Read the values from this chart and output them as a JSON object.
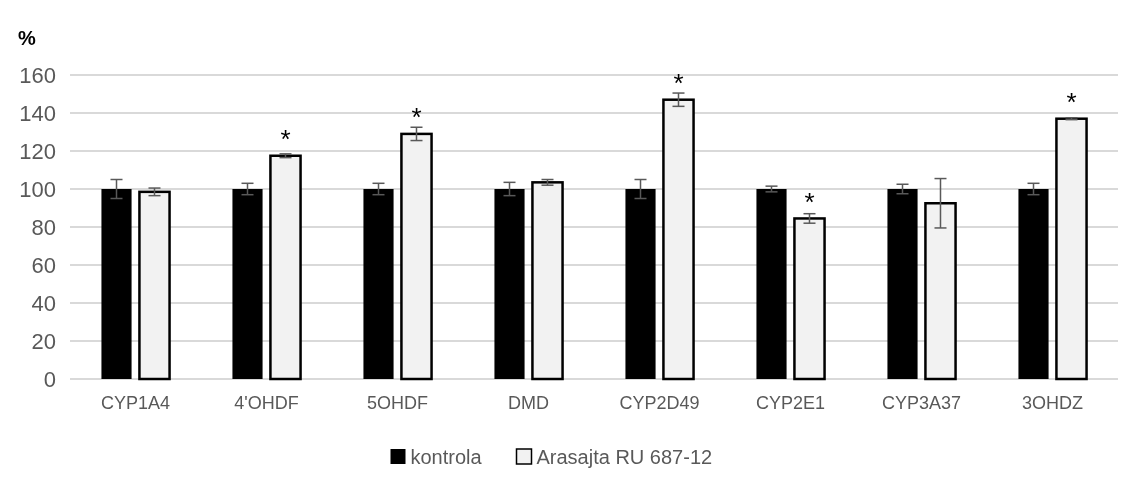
{
  "chart_data": {
    "type": "bar",
    "ylabel": "%",
    "categories": [
      "CYP1A4",
      "4'OHDF",
      "5OHDF",
      "DMD",
      "CYP2D49",
      "CYP2E1",
      "CYP3A37",
      "3OHDZ"
    ],
    "series": [
      {
        "name": "kontrola",
        "color": "#000000",
        "values": [
          100,
          100,
          100,
          100,
          100,
          100,
          100,
          100
        ],
        "errors": [
          5,
          3,
          3,
          3.5,
          5,
          1.5,
          2.5,
          3
        ]
      },
      {
        "name": "Arasajta RU 687-12",
        "color": "#f2f2f2",
        "values": [
          98.5,
          117.5,
          129,
          103.5,
          147,
          84.5,
          92.5,
          137
        ],
        "errors": [
          2,
          1,
          3.5,
          1.5,
          3.5,
          2.5,
          13,
          0.5
        ]
      }
    ],
    "annotations": [
      {
        "text": "*",
        "x": "4'OHDF",
        "y": 117.5
      },
      {
        "text": "*",
        "x": "5OHDF",
        "y": 129
      },
      {
        "text": "*",
        "x": "CYP2D49",
        "y": 147
      },
      {
        "text": "*",
        "x": "CYP2E1",
        "y": 84.5
      },
      {
        "text": "*",
        "x": "3OHDZ",
        "y": 137
      }
    ],
    "ylim": [
      0,
      160
    ],
    "yticks": [
      0,
      20,
      40,
      60,
      80,
      100,
      120,
      140,
      160
    ],
    "grid": "y",
    "legend": "bottom"
  }
}
